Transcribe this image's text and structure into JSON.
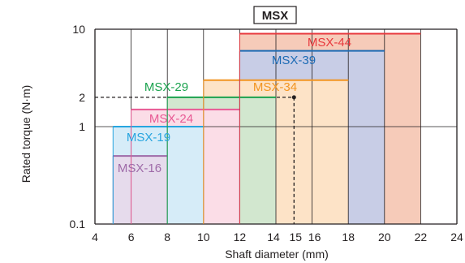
{
  "chart_data": {
    "type": "bar",
    "title": "MSX",
    "xlabel": "Shaft diameter (mm)",
    "ylabel": "Rated torque (N·m)",
    "xlim": [
      4,
      24
    ],
    "ylim": [
      0.1,
      10
    ],
    "yscale": "log",
    "x_ticks": [
      "4",
      "6",
      "8",
      "10",
      "12",
      "14",
      "15",
      "16",
      "18",
      "20",
      "22",
      "24"
    ],
    "y_ticks": [
      "0.1",
      "1",
      "2",
      "10"
    ],
    "grid": true,
    "series": [
      {
        "name": "MSX-16",
        "x_range": [
          5,
          8
        ],
        "rated_torque": 0.5,
        "color": "#9e6aa8",
        "fill": "#e6dbec"
      },
      {
        "name": "MSX-19",
        "x_range": [
          5,
          10
        ],
        "rated_torque": 1.0,
        "color": "#27a5df",
        "fill": "#d6ecf8"
      },
      {
        "name": "MSX-24",
        "x_range": [
          6,
          12
        ],
        "rated_torque": 1.5,
        "color": "#e85a94",
        "fill": "#fbdde7"
      },
      {
        "name": "MSX-29",
        "x_range": [
          8,
          14
        ],
        "rated_torque": 2.0,
        "color": "#1ba24e",
        "fill": "#d2e7cf"
      },
      {
        "name": "MSX-34",
        "x_range": [
          10,
          18
        ],
        "rated_torque": 3.0,
        "color": "#f29522",
        "fill": "#fde3c7"
      },
      {
        "name": "MSX-39",
        "x_range": [
          12,
          20
        ],
        "rated_torque": 6.0,
        "color": "#1d6bb5",
        "fill": "#c8cde6"
      },
      {
        "name": "MSX-44",
        "x_range": [
          12,
          22
        ],
        "rated_torque": 9.0,
        "color": "#e8383d",
        "fill": "#f6cbb9"
      }
    ],
    "annotations": [
      {
        "type": "dashed-guide",
        "x": 15,
        "y": 2
      }
    ]
  },
  "colors": {
    "axis": "#231f20",
    "grid": "#231f20"
  }
}
